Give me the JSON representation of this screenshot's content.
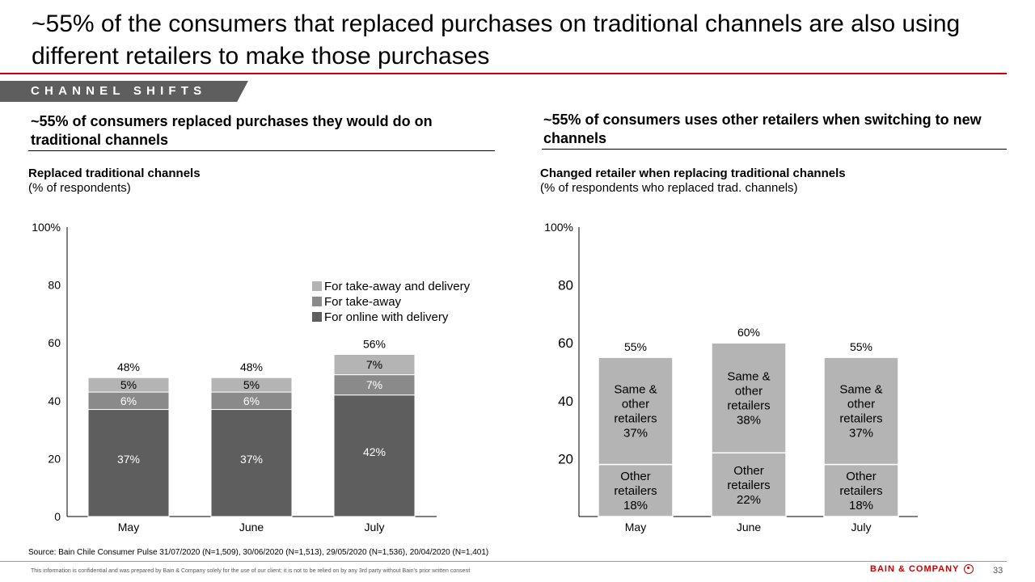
{
  "title": "~55% of the consumers that replaced purchases on traditional channels are also using different retailers to make those purchases",
  "section_tag": "CHANNEL SHIFTS",
  "left_panel": {
    "heading": "~55% of consumers replaced purchases they would do on traditional channels",
    "chart_title": "Replaced traditional channels",
    "chart_subtitle": "(% of respondents)"
  },
  "right_panel": {
    "heading": "~55% of consumers uses other retailers when switching to new channels",
    "chart_title": "Changed retailer  when replacing traditional channels",
    "chart_subtitle": "(% of respondents who replaced trad. channels)"
  },
  "colors": {
    "accent": "#cc0000",
    "dark": "#5e5e5e",
    "mid": "#8a8a8a",
    "light": "#b4b4b4"
  },
  "chart_data": [
    {
      "type": "bar",
      "stacked": true,
      "categories": [
        "May",
        "June",
        "July"
      ],
      "series": [
        {
          "name": "For online with delivery",
          "values": [
            37,
            37,
            42
          ],
          "labels": [
            "37%",
            "37%",
            "42%"
          ],
          "color": "#5e5e5e"
        },
        {
          "name": "For take-away",
          "values": [
            6,
            6,
            7
          ],
          "labels": [
            "6%",
            "6%",
            "7%"
          ],
          "color": "#8a8a8a"
        },
        {
          "name": "For take-away and delivery",
          "values": [
            5,
            5,
            7
          ],
          "labels": [
            "5%",
            "5%",
            "7%"
          ],
          "color": "#b4b4b4"
        }
      ],
      "totals": [
        48,
        48,
        56
      ],
      "total_labels": [
        "48%",
        "48%",
        "56%"
      ],
      "yticks": [
        "0",
        "20",
        "40",
        "60",
        "80",
        "100%"
      ],
      "ylim": [
        0,
        100
      ],
      "legend_position": "top-right"
    },
    {
      "type": "bar",
      "stacked": true,
      "categories": [
        "May",
        "June",
        "July"
      ],
      "series": [
        {
          "values": [
            18,
            22,
            18
          ],
          "labels": [
            "Other\nretailers\n18%",
            "Other\nretailers\n22%",
            "Other\nretailers\n18%"
          ],
          "color": "#b4b4b4"
        },
        {
          "values": [
            37,
            38,
            37
          ],
          "labels": [
            "Same &\nother\nretailers\n37%",
            "Same &\nother\nretailers\n38%",
            "Same &\nother\nretailers\n37%"
          ],
          "color": "#b4b4b4"
        }
      ],
      "totals": [
        55,
        60,
        55
      ],
      "total_labels": [
        "55%",
        "60%",
        "55%"
      ],
      "yticks": [
        "20",
        "40",
        "60",
        "80",
        "100%"
      ],
      "ylim": [
        0,
        100
      ]
    }
  ],
  "source": "Source: Bain Chile Consumer Pulse 31/07/2020 (N=1,509), 30/06/2020 (N=1,513), 29/05/2020 (N=1,536), 20/04/2020 (N=1,401)",
  "disclaimer": "This information is confidential and was prepared by Bain & Company solely for the use of our client; it is not to be relied on by any 3rd party without Bain's prior written consent",
  "logo_text": "BAIN & COMPANY",
  "page_number": "33"
}
